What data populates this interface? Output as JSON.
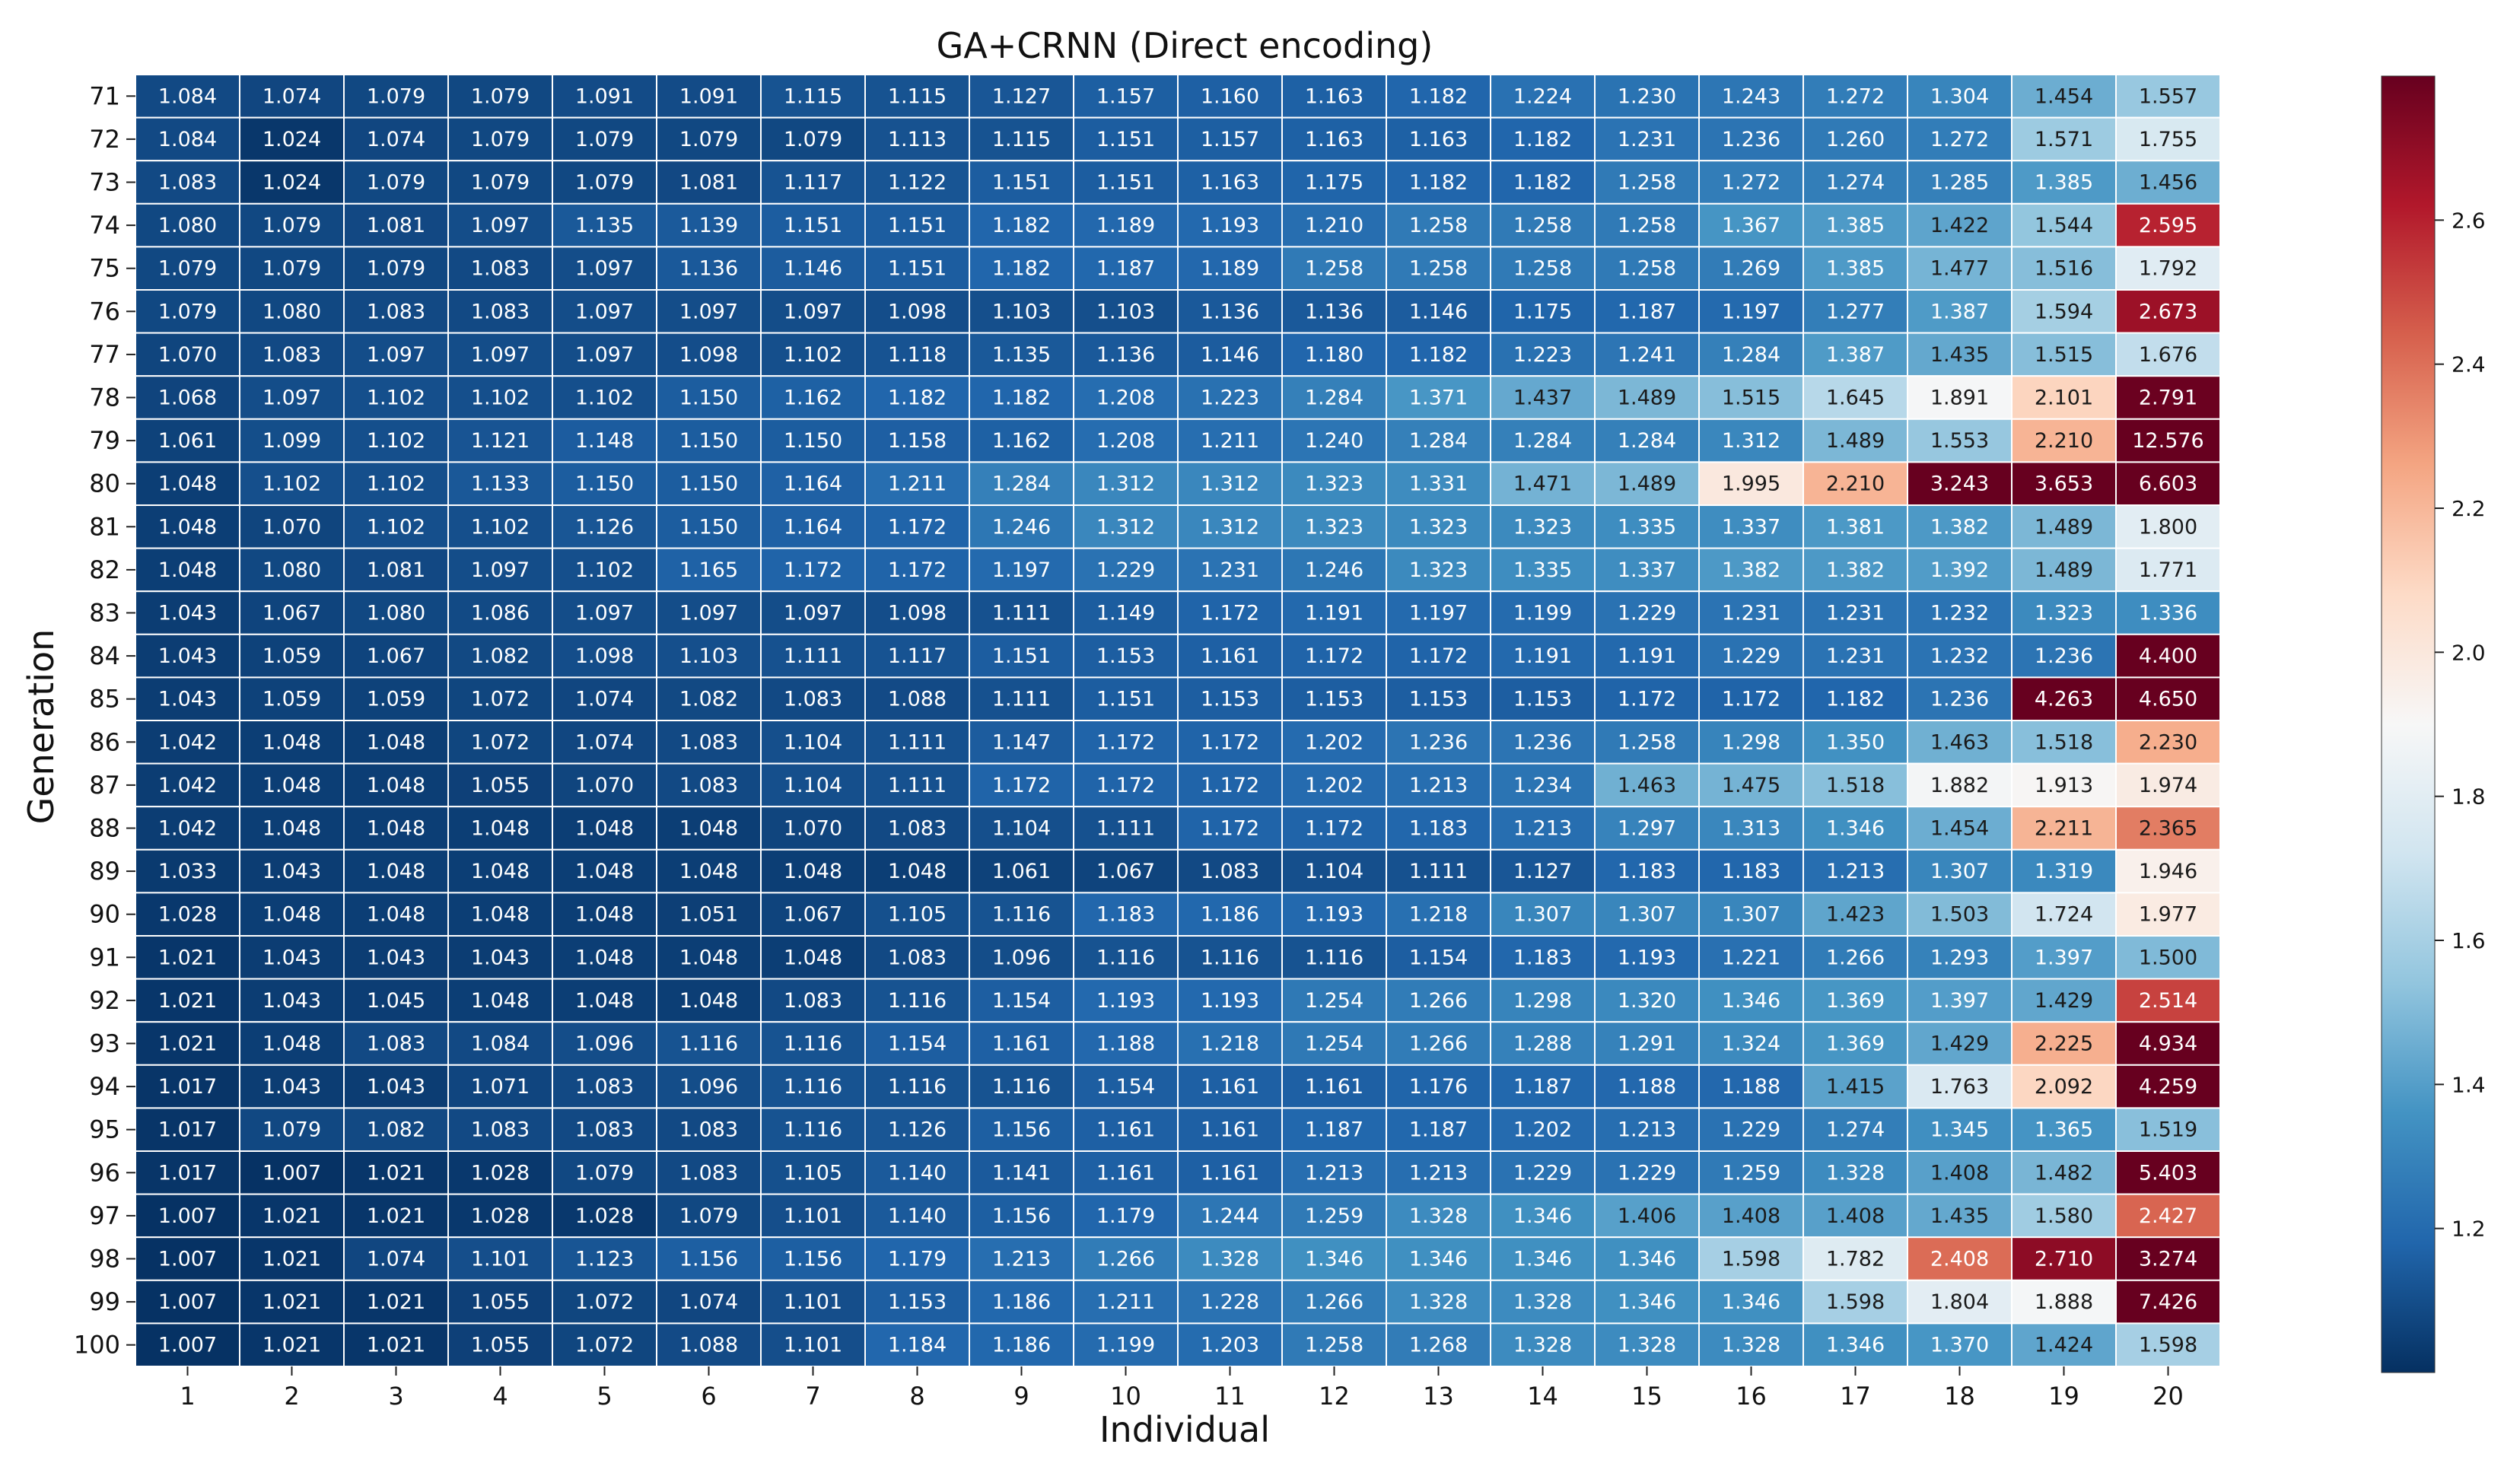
{
  "chart_data": {
    "type": "heatmap",
    "title": "GA+CRNN (Direct encoding)",
    "xlabel": "Individual",
    "ylabel": "Generation",
    "x_categories": [
      "1",
      "2",
      "3",
      "4",
      "5",
      "6",
      "7",
      "8",
      "9",
      "10",
      "11",
      "12",
      "13",
      "14",
      "15",
      "16",
      "17",
      "18",
      "19",
      "20"
    ],
    "y_categories": [
      "71",
      "72",
      "73",
      "74",
      "75",
      "76",
      "77",
      "78",
      "79",
      "80",
      "81",
      "82",
      "83",
      "84",
      "85",
      "86",
      "87",
      "88",
      "89",
      "90",
      "91",
      "92",
      "93",
      "94",
      "95",
      "96",
      "97",
      "98",
      "99",
      "100"
    ],
    "values": [
      [
        "1.084",
        "1.074",
        "1.079",
        "1.079",
        "1.091",
        "1.091",
        "1.115",
        "1.115",
        "1.127",
        "1.157",
        "1.160",
        "1.163",
        "1.182",
        "1.224",
        "1.230",
        "1.243",
        "1.272",
        "1.304",
        "1.454",
        "1.557"
      ],
      [
        "1.084",
        "1.024",
        "1.074",
        "1.079",
        "1.079",
        "1.079",
        "1.079",
        "1.113",
        "1.115",
        "1.151",
        "1.157",
        "1.163",
        "1.163",
        "1.182",
        "1.231",
        "1.236",
        "1.260",
        "1.272",
        "1.571",
        "1.755"
      ],
      [
        "1.083",
        "1.024",
        "1.079",
        "1.079",
        "1.079",
        "1.081",
        "1.117",
        "1.122",
        "1.151",
        "1.151",
        "1.163",
        "1.175",
        "1.182",
        "1.182",
        "1.258",
        "1.272",
        "1.274",
        "1.285",
        "1.385",
        "1.456"
      ],
      [
        "1.080",
        "1.079",
        "1.081",
        "1.097",
        "1.135",
        "1.139",
        "1.151",
        "1.151",
        "1.182",
        "1.189",
        "1.193",
        "1.210",
        "1.258",
        "1.258",
        "1.258",
        "1.367",
        "1.385",
        "1.422",
        "1.544",
        "2.595"
      ],
      [
        "1.079",
        "1.079",
        "1.079",
        "1.083",
        "1.097",
        "1.136",
        "1.146",
        "1.151",
        "1.182",
        "1.187",
        "1.189",
        "1.258",
        "1.258",
        "1.258",
        "1.258",
        "1.269",
        "1.385",
        "1.477",
        "1.516",
        "1.792"
      ],
      [
        "1.079",
        "1.080",
        "1.083",
        "1.083",
        "1.097",
        "1.097",
        "1.097",
        "1.098",
        "1.103",
        "1.103",
        "1.136",
        "1.136",
        "1.146",
        "1.175",
        "1.187",
        "1.197",
        "1.277",
        "1.387",
        "1.594",
        "2.673"
      ],
      [
        "1.070",
        "1.083",
        "1.097",
        "1.097",
        "1.097",
        "1.098",
        "1.102",
        "1.118",
        "1.135",
        "1.136",
        "1.146",
        "1.180",
        "1.182",
        "1.223",
        "1.241",
        "1.284",
        "1.387",
        "1.435",
        "1.515",
        "1.676"
      ],
      [
        "1.068",
        "1.097",
        "1.102",
        "1.102",
        "1.102",
        "1.150",
        "1.162",
        "1.182",
        "1.182",
        "1.208",
        "1.223",
        "1.284",
        "1.371",
        "1.437",
        "1.489",
        "1.515",
        "1.645",
        "1.891",
        "2.101",
        "2.791"
      ],
      [
        "1.061",
        "1.099",
        "1.102",
        "1.121",
        "1.148",
        "1.150",
        "1.150",
        "1.158",
        "1.162",
        "1.208",
        "1.211",
        "1.240",
        "1.284",
        "1.284",
        "1.284",
        "1.312",
        "1.489",
        "1.553",
        "2.210",
        "12.576"
      ],
      [
        "1.048",
        "1.102",
        "1.102",
        "1.133",
        "1.150",
        "1.150",
        "1.164",
        "1.211",
        "1.284",
        "1.312",
        "1.312",
        "1.323",
        "1.331",
        "1.471",
        "1.489",
        "1.995",
        "2.210",
        "3.243",
        "3.653",
        "6.603"
      ],
      [
        "1.048",
        "1.070",
        "1.102",
        "1.102",
        "1.126",
        "1.150",
        "1.164",
        "1.172",
        "1.246",
        "1.312",
        "1.312",
        "1.323",
        "1.323",
        "1.323",
        "1.335",
        "1.337",
        "1.381",
        "1.382",
        "1.489",
        "1.800"
      ],
      [
        "1.048",
        "1.080",
        "1.081",
        "1.097",
        "1.102",
        "1.165",
        "1.172",
        "1.172",
        "1.197",
        "1.229",
        "1.231",
        "1.246",
        "1.323",
        "1.335",
        "1.337",
        "1.382",
        "1.382",
        "1.392",
        "1.489",
        "1.771"
      ],
      [
        "1.043",
        "1.067",
        "1.080",
        "1.086",
        "1.097",
        "1.097",
        "1.097",
        "1.098",
        "1.111",
        "1.149",
        "1.172",
        "1.191",
        "1.197",
        "1.199",
        "1.229",
        "1.231",
        "1.231",
        "1.232",
        "1.323",
        "1.336"
      ],
      [
        "1.043",
        "1.059",
        "1.067",
        "1.082",
        "1.098",
        "1.103",
        "1.111",
        "1.117",
        "1.151",
        "1.153",
        "1.161",
        "1.172",
        "1.172",
        "1.191",
        "1.191",
        "1.229",
        "1.231",
        "1.232",
        "1.236",
        "4.400"
      ],
      [
        "1.043",
        "1.059",
        "1.059",
        "1.072",
        "1.074",
        "1.082",
        "1.083",
        "1.088",
        "1.111",
        "1.151",
        "1.153",
        "1.153",
        "1.153",
        "1.153",
        "1.172",
        "1.172",
        "1.182",
        "1.236",
        "4.263",
        "4.650"
      ],
      [
        "1.042",
        "1.048",
        "1.048",
        "1.072",
        "1.074",
        "1.083",
        "1.104",
        "1.111",
        "1.147",
        "1.172",
        "1.172",
        "1.202",
        "1.236",
        "1.236",
        "1.258",
        "1.298",
        "1.350",
        "1.463",
        "1.518",
        "2.230"
      ],
      [
        "1.042",
        "1.048",
        "1.048",
        "1.055",
        "1.070",
        "1.083",
        "1.104",
        "1.111",
        "1.172",
        "1.172",
        "1.172",
        "1.202",
        "1.213",
        "1.234",
        "1.463",
        "1.475",
        "1.518",
        "1.882",
        "1.913",
        "1.974"
      ],
      [
        "1.042",
        "1.048",
        "1.048",
        "1.048",
        "1.048",
        "1.048",
        "1.070",
        "1.083",
        "1.104",
        "1.111",
        "1.172",
        "1.172",
        "1.183",
        "1.213",
        "1.297",
        "1.313",
        "1.346",
        "1.454",
        "2.211",
        "2.365"
      ],
      [
        "1.033",
        "1.043",
        "1.048",
        "1.048",
        "1.048",
        "1.048",
        "1.048",
        "1.048",
        "1.061",
        "1.067",
        "1.083",
        "1.104",
        "1.111",
        "1.127",
        "1.183",
        "1.183",
        "1.213",
        "1.307",
        "1.319",
        "1.946"
      ],
      [
        "1.028",
        "1.048",
        "1.048",
        "1.048",
        "1.048",
        "1.051",
        "1.067",
        "1.105",
        "1.116",
        "1.183",
        "1.186",
        "1.193",
        "1.218",
        "1.307",
        "1.307",
        "1.307",
        "1.423",
        "1.503",
        "1.724",
        "1.977"
      ],
      [
        "1.021",
        "1.043",
        "1.043",
        "1.043",
        "1.048",
        "1.048",
        "1.048",
        "1.083",
        "1.096",
        "1.116",
        "1.116",
        "1.116",
        "1.154",
        "1.183",
        "1.193",
        "1.221",
        "1.266",
        "1.293",
        "1.397",
        "1.500"
      ],
      [
        "1.021",
        "1.043",
        "1.045",
        "1.048",
        "1.048",
        "1.048",
        "1.083",
        "1.116",
        "1.154",
        "1.193",
        "1.193",
        "1.254",
        "1.266",
        "1.298",
        "1.320",
        "1.346",
        "1.369",
        "1.397",
        "1.429",
        "2.514"
      ],
      [
        "1.021",
        "1.048",
        "1.083",
        "1.084",
        "1.096",
        "1.116",
        "1.116",
        "1.154",
        "1.161",
        "1.188",
        "1.218",
        "1.254",
        "1.266",
        "1.288",
        "1.291",
        "1.324",
        "1.369",
        "1.429",
        "2.225",
        "4.934"
      ],
      [
        "1.017",
        "1.043",
        "1.043",
        "1.071",
        "1.083",
        "1.096",
        "1.116",
        "1.116",
        "1.116",
        "1.154",
        "1.161",
        "1.161",
        "1.176",
        "1.187",
        "1.188",
        "1.188",
        "1.415",
        "1.763",
        "2.092",
        "4.259"
      ],
      [
        "1.017",
        "1.079",
        "1.082",
        "1.083",
        "1.083",
        "1.083",
        "1.116",
        "1.126",
        "1.156",
        "1.161",
        "1.161",
        "1.187",
        "1.187",
        "1.202",
        "1.213",
        "1.229",
        "1.274",
        "1.345",
        "1.365",
        "1.519"
      ],
      [
        "1.017",
        "1.007",
        "1.021",
        "1.028",
        "1.079",
        "1.083",
        "1.105",
        "1.140",
        "1.141",
        "1.161",
        "1.161",
        "1.213",
        "1.213",
        "1.229",
        "1.229",
        "1.259",
        "1.328",
        "1.408",
        "1.482",
        "5.403"
      ],
      [
        "1.007",
        "1.021",
        "1.021",
        "1.028",
        "1.028",
        "1.079",
        "1.101",
        "1.140",
        "1.156",
        "1.179",
        "1.244",
        "1.259",
        "1.328",
        "1.346",
        "1.406",
        "1.408",
        "1.408",
        "1.435",
        "1.580",
        "2.427"
      ],
      [
        "1.007",
        "1.021",
        "1.074",
        "1.101",
        "1.123",
        "1.156",
        "1.156",
        "1.179",
        "1.213",
        "1.266",
        "1.328",
        "1.346",
        "1.346",
        "1.346",
        "1.346",
        "1.598",
        "1.782",
        "2.408",
        "2.710",
        "3.274"
      ],
      [
        "1.007",
        "1.021",
        "1.021",
        "1.055",
        "1.072",
        "1.074",
        "1.101",
        "1.153",
        "1.186",
        "1.211",
        "1.228",
        "1.266",
        "1.328",
        "1.328",
        "1.346",
        "1.346",
        "1.598",
        "1.804",
        "1.888",
        "7.426"
      ],
      [
        "1.007",
        "1.021",
        "1.021",
        "1.055",
        "1.072",
        "1.088",
        "1.101",
        "1.184",
        "1.186",
        "1.199",
        "1.203",
        "1.258",
        "1.268",
        "1.328",
        "1.328",
        "1.328",
        "1.346",
        "1.370",
        "1.424",
        "1.598"
      ]
    ],
    "colorscale": {
      "name": "RdBu_r",
      "vmin": 1.0,
      "vmax": 2.8,
      "stops": [
        "#053061",
        "#2166ac",
        "#4393c3",
        "#92c5de",
        "#d1e5f0",
        "#f7f7f7",
        "#fddbc7",
        "#f4a582",
        "#d6604d",
        "#b2182b",
        "#67001f"
      ]
    },
    "colorbar_ticks": [
      "1.2",
      "1.4",
      "1.6",
      "1.8",
      "2.0",
      "2.2",
      "2.4",
      "2.6"
    ]
  }
}
